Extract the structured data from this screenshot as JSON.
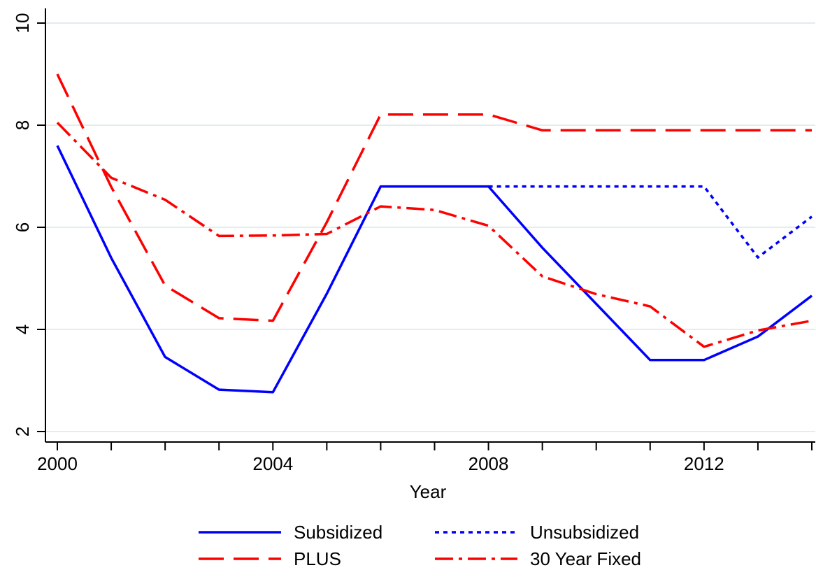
{
  "chart_data": {
    "type": "line",
    "title": "",
    "xlabel": "Year",
    "ylabel": "",
    "xlim": [
      2000,
      2014
    ],
    "ylim": [
      2,
      10
    ],
    "x_ticks": [
      2000,
      2004,
      2008,
      2012
    ],
    "x_tick_labels": [
      "2000",
      "2004",
      "2008",
      "2012"
    ],
    "x_minor_ticks": [
      2001,
      2002,
      2003,
      2005,
      2006,
      2007,
      2009,
      2010,
      2011,
      2013,
      2014
    ],
    "y_ticks": [
      2,
      4,
      6,
      8,
      10
    ],
    "y_tick_labels": [
      "2",
      "4",
      "6",
      "8",
      "10"
    ],
    "grid": true,
    "legend_position": "bottom",
    "x": [
      2000,
      2001,
      2002,
      2003,
      2004,
      2005,
      2006,
      2007,
      2008,
      2009,
      2010,
      2011,
      2012,
      2013,
      2014
    ],
    "series": [
      {
        "name": "Subsidized",
        "color": "#0000ff",
        "style": "solid",
        "values": [
          7.6,
          5.4,
          3.46,
          2.82,
          2.77,
          4.7,
          6.8,
          6.8,
          6.8,
          5.6,
          4.5,
          3.4,
          3.4,
          3.86,
          4.66
        ]
      },
      {
        "name": "Unsubsidized",
        "color": "#0000ff",
        "style": "dotted",
        "values": [
          null,
          null,
          null,
          null,
          null,
          null,
          null,
          null,
          6.8,
          6.8,
          6.8,
          6.8,
          6.8,
          5.41,
          6.21
        ]
      },
      {
        "name": "PLUS",
        "color": "#ff0000",
        "style": "longdash",
        "values": [
          9.0,
          6.79,
          4.86,
          4.22,
          4.17,
          6.1,
          8.21,
          8.21,
          8.21,
          7.9,
          7.9,
          7.9,
          7.9,
          7.9,
          7.9
        ]
      },
      {
        "name": "30 Year Fixed",
        "color": "#ff0000",
        "style": "dashdot",
        "values": [
          8.05,
          6.97,
          6.54,
          5.83,
          5.84,
          5.87,
          6.41,
          6.34,
          6.03,
          5.04,
          4.69,
          4.45,
          3.66,
          3.98,
          4.17
        ]
      }
    ]
  }
}
